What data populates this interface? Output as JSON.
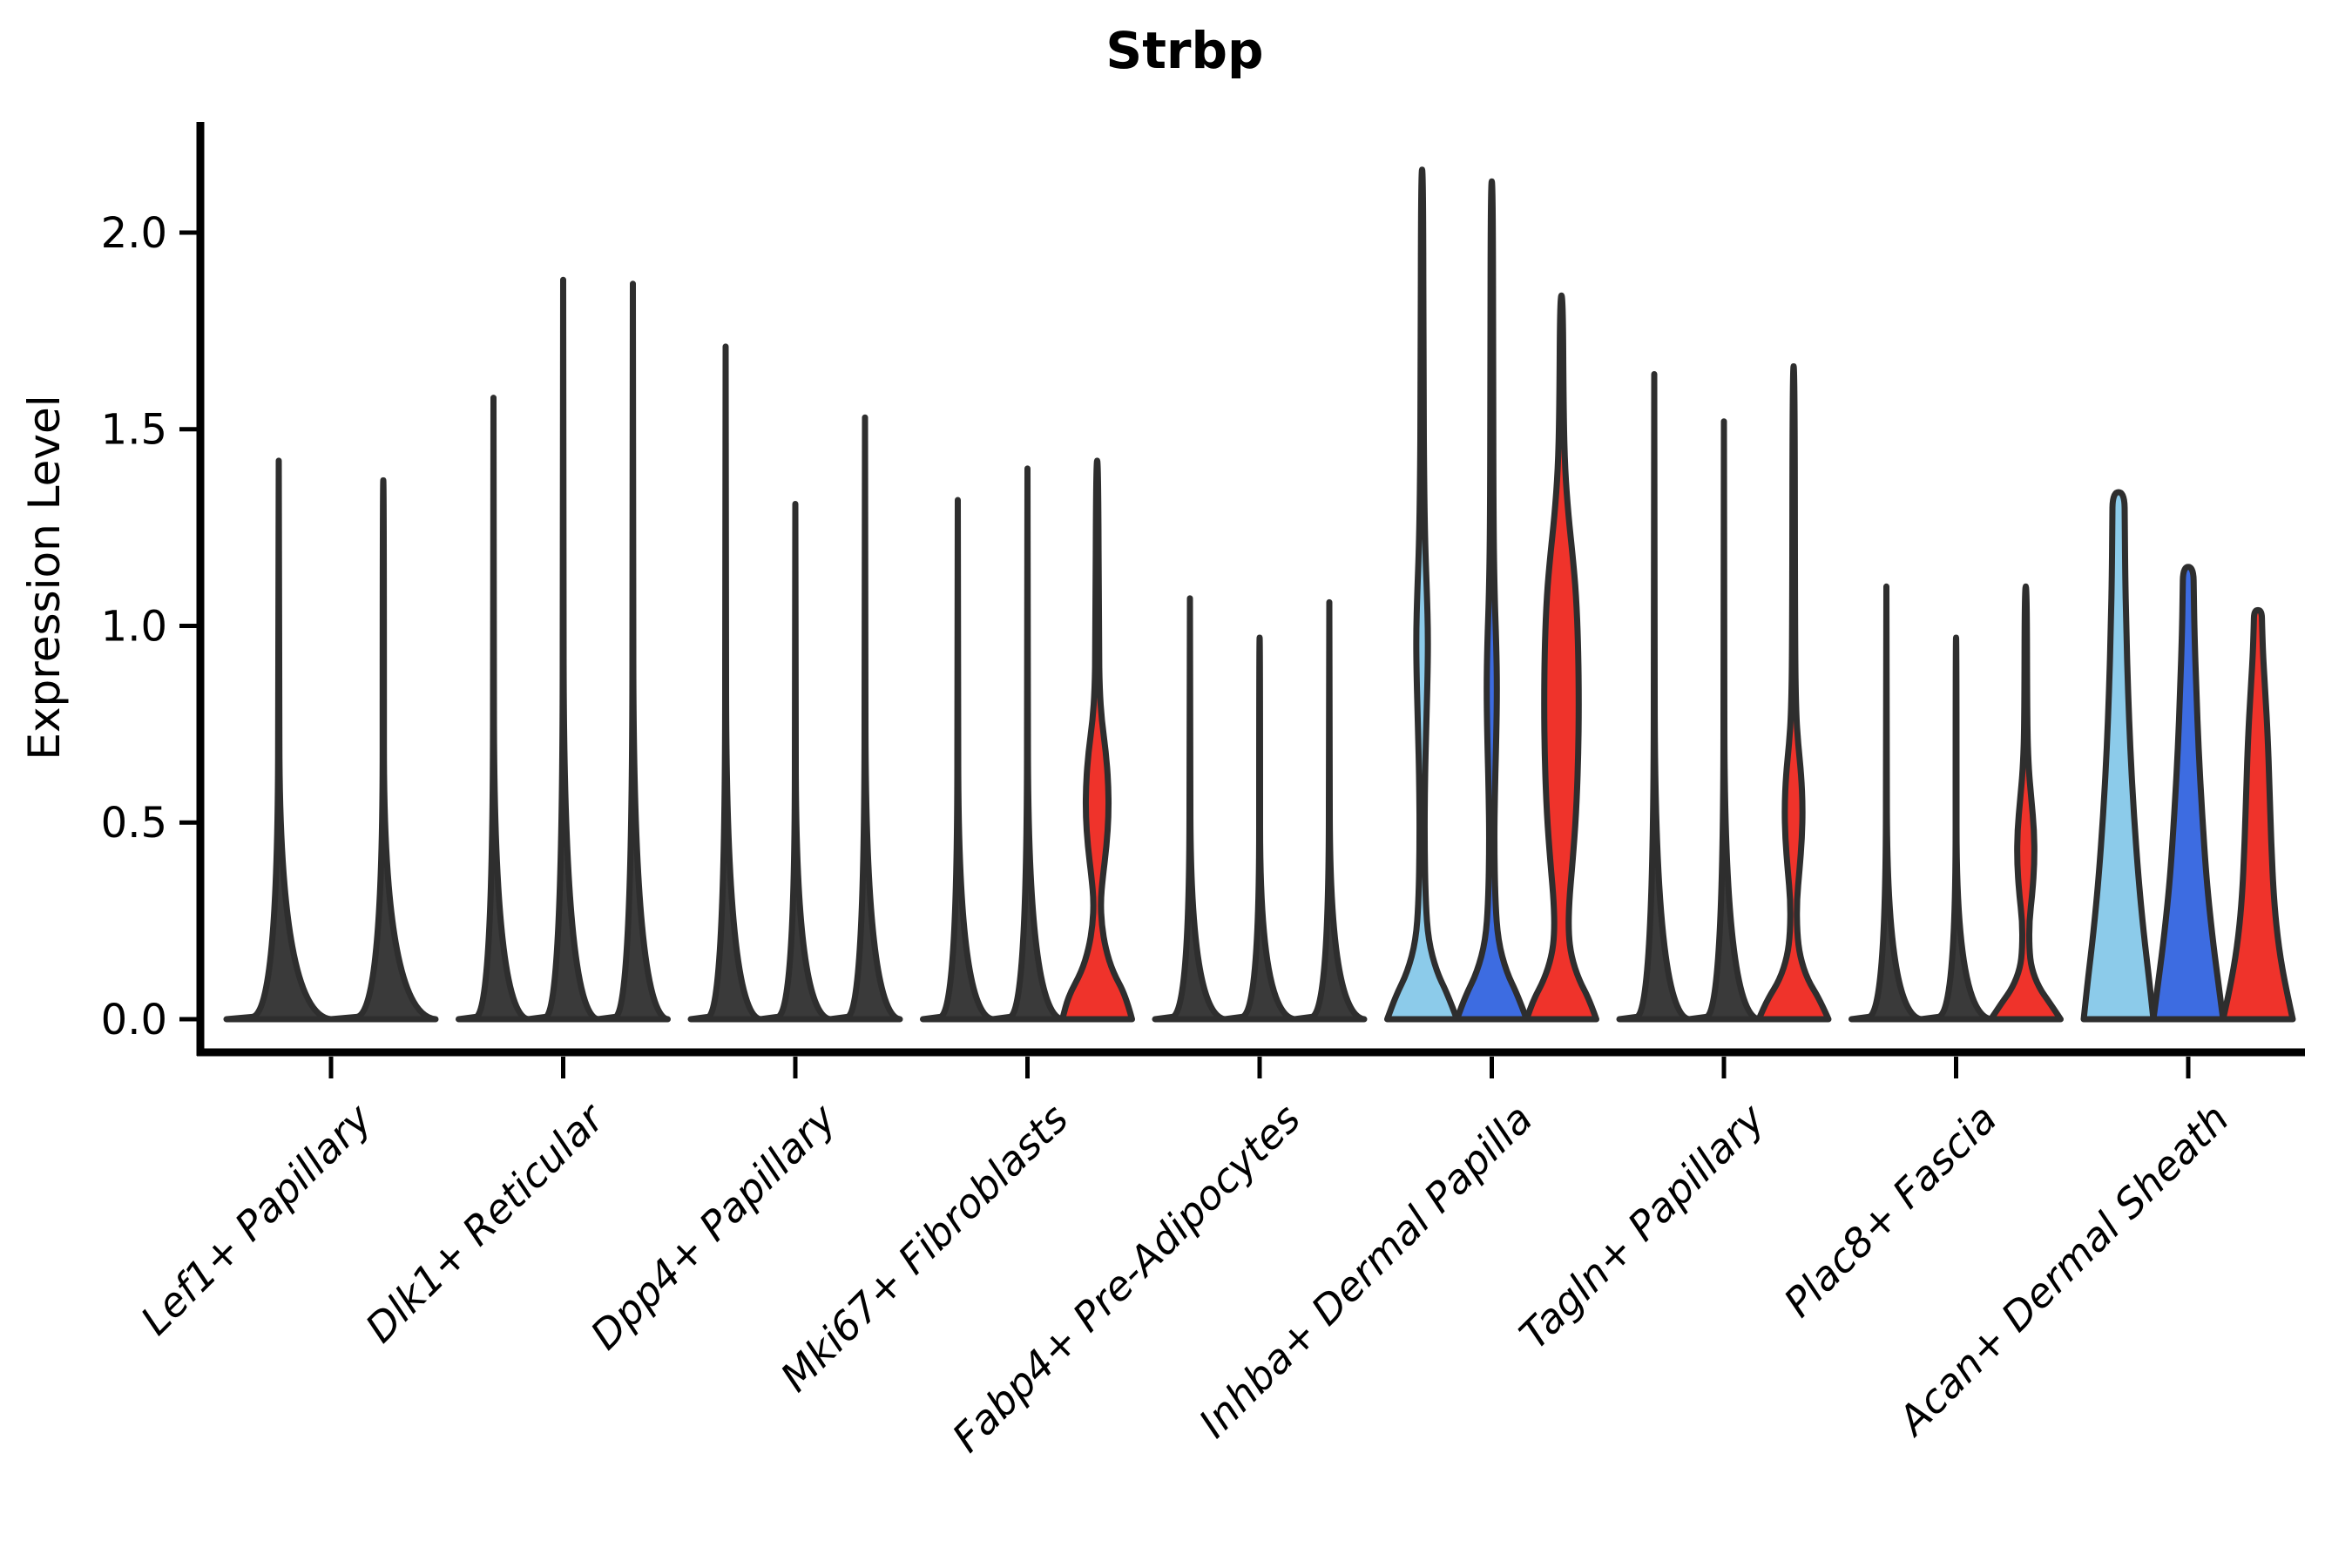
{
  "title": "Strbp",
  "axes": {
    "ylabel": "Expression Level",
    "ytick_labels": [
      "0.0",
      "0.5",
      "1.0",
      "1.5",
      "2.0"
    ]
  },
  "colors": {
    "outline": "#2e2e2e",
    "spike_black": "#3a3a3a",
    "lightblue": "#8ccbea",
    "blue": "#3d6ce1",
    "red": "#ef332b",
    "axis": "#000000"
  },
  "chart_data": {
    "type": "violin",
    "title": "Strbp",
    "xlabel": "",
    "ylabel": "Expression Level",
    "ylim": [
      -0.07,
      2.28
    ],
    "yticks": [
      0.0,
      0.5,
      1.0,
      1.5,
      2.0
    ],
    "grid": false,
    "legend": "none",
    "x_tick_rotation": 45,
    "categories": [
      "Lef1+ Papillary",
      "Dlk1+ Reticular",
      "Dpp4+ Papillary",
      "Mki67+ Fibroblasts",
      "Fabp4+ Pre-Adipocytes",
      "Inhba+ Dermal Papilla",
      "Tagln+ Papillary",
      "Plac8+ Fascia",
      "Acan+ Dermal Sheath"
    ],
    "groups": [
      {
        "category": "Lef1+ Papillary",
        "violins": [
          {
            "color": "black",
            "kind": "spike",
            "max": 1.42
          },
          {
            "color": "black",
            "kind": "spike",
            "max": 1.37
          }
        ]
      },
      {
        "category": "Dlk1+ Reticular",
        "violins": [
          {
            "color": "black",
            "kind": "spike",
            "max": 1.58
          },
          {
            "color": "black",
            "kind": "spike",
            "max": 1.88
          },
          {
            "color": "black",
            "kind": "spike",
            "max": 1.87
          }
        ]
      },
      {
        "category": "Dpp4+ Papillary",
        "violins": [
          {
            "color": "black",
            "kind": "spike",
            "max": 1.71
          },
          {
            "color": "black",
            "kind": "spike",
            "max": 1.31
          },
          {
            "color": "black",
            "kind": "spike",
            "max": 1.53
          }
        ]
      },
      {
        "category": "Mki67+ Fibroblasts",
        "violins": [
          {
            "color": "black",
            "kind": "spike",
            "max": 1.32
          },
          {
            "color": "black",
            "kind": "spike",
            "max": 1.4
          },
          {
            "color": "red",
            "kind": "shaped",
            "max": 1.42,
            "profile": [
              [
                0,
                1.0
              ],
              [
                0.06,
                0.82
              ],
              [
                0.12,
                0.45
              ],
              [
                0.18,
                0.24
              ],
              [
                0.24,
                0.13
              ],
              [
                0.3,
                0.1
              ],
              [
                0.36,
                0.16
              ],
              [
                0.44,
                0.27
              ],
              [
                0.52,
                0.33
              ],
              [
                0.6,
                0.32
              ],
              [
                0.68,
                0.25
              ],
              [
                0.76,
                0.13
              ],
              [
                0.84,
                0.07
              ],
              [
                0.95,
                0.05
              ],
              [
                1.42,
                0.03
              ]
            ]
          }
        ]
      },
      {
        "category": "Fabp4+ Pre-Adipocytes",
        "violins": [
          {
            "color": "black",
            "kind": "spike",
            "max": 1.07
          },
          {
            "color": "black",
            "kind": "spike",
            "max": 0.97
          },
          {
            "color": "black",
            "kind": "spike",
            "max": 1.06
          }
        ]
      },
      {
        "category": "Inhba+ Dermal Papilla",
        "violins": [
          {
            "color": "lightblue",
            "kind": "shaped",
            "max": 2.16,
            "profile": [
              [
                0,
                1.0
              ],
              [
                0.06,
                0.75
              ],
              [
                0.12,
                0.42
              ],
              [
                0.2,
                0.18
              ],
              [
                0.3,
                0.1
              ],
              [
                0.45,
                0.07
              ],
              [
                0.6,
                0.08
              ],
              [
                0.75,
                0.12
              ],
              [
                0.88,
                0.16
              ],
              [
                0.98,
                0.17
              ],
              [
                1.08,
                0.14
              ],
              [
                1.2,
                0.09
              ],
              [
                1.35,
                0.06
              ],
              [
                1.6,
                0.04
              ],
              [
                2.16,
                0.03
              ]
            ]
          },
          {
            "color": "blue",
            "kind": "shaped",
            "max": 2.13,
            "profile": [
              [
                0,
                1.0
              ],
              [
                0.06,
                0.75
              ],
              [
                0.12,
                0.42
              ],
              [
                0.2,
                0.18
              ],
              [
                0.3,
                0.1
              ],
              [
                0.45,
                0.07
              ],
              [
                0.58,
                0.09
              ],
              [
                0.72,
                0.13
              ],
              [
                0.84,
                0.15
              ],
              [
                0.95,
                0.13
              ],
              [
                1.08,
                0.08
              ],
              [
                1.25,
                0.05
              ],
              [
                1.6,
                0.04
              ],
              [
                2.13,
                0.03
              ]
            ]
          },
          {
            "color": "red",
            "kind": "shaped",
            "max": 1.84,
            "profile": [
              [
                0,
                1.0
              ],
              [
                0.05,
                0.8
              ],
              [
                0.1,
                0.5
              ],
              [
                0.16,
                0.28
              ],
              [
                0.22,
                0.2
              ],
              [
                0.3,
                0.22
              ],
              [
                0.4,
                0.32
              ],
              [
                0.52,
                0.42
              ],
              [
                0.66,
                0.48
              ],
              [
                0.8,
                0.5
              ],
              [
                0.95,
                0.48
              ],
              [
                1.08,
                0.42
              ],
              [
                1.18,
                0.32
              ],
              [
                1.28,
                0.2
              ],
              [
                1.4,
                0.1
              ],
              [
                1.55,
                0.06
              ],
              [
                1.84,
                0.04
              ]
            ]
          }
        ]
      },
      {
        "category": "Tagln+ Papillary",
        "violins": [
          {
            "color": "black",
            "kind": "spike",
            "max": 1.64
          },
          {
            "color": "black",
            "kind": "spike",
            "max": 1.52
          },
          {
            "color": "red",
            "kind": "shaped",
            "max": 1.66,
            "profile": [
              [
                0,
                1.0
              ],
              [
                0.05,
                0.75
              ],
              [
                0.1,
                0.4
              ],
              [
                0.16,
                0.18
              ],
              [
                0.22,
                0.1
              ],
              [
                0.3,
                0.09
              ],
              [
                0.38,
                0.17
              ],
              [
                0.46,
                0.24
              ],
              [
                0.54,
                0.26
              ],
              [
                0.62,
                0.22
              ],
              [
                0.7,
                0.13
              ],
              [
                0.78,
                0.07
              ],
              [
                0.95,
                0.04
              ],
              [
                1.66,
                0.03
              ]
            ]
          }
        ]
      },
      {
        "category": "Plac8+ Fascia",
        "violins": [
          {
            "color": "black",
            "kind": "spike",
            "max": 1.1
          },
          {
            "color": "black",
            "kind": "spike",
            "max": 0.97
          },
          {
            "color": "red",
            "kind": "shaped",
            "max": 1.1,
            "profile": [
              [
                0,
                1.0
              ],
              [
                0.04,
                0.7
              ],
              [
                0.08,
                0.38
              ],
              [
                0.13,
                0.16
              ],
              [
                0.18,
                0.1
              ],
              [
                0.25,
                0.1
              ],
              [
                0.32,
                0.19
              ],
              [
                0.4,
                0.25
              ],
              [
                0.48,
                0.24
              ],
              [
                0.56,
                0.16
              ],
              [
                0.64,
                0.08
              ],
              [
                0.75,
                0.04
              ],
              [
                1.1,
                0.03
              ]
            ]
          }
        ]
      },
      {
        "category": "Acan+ Dermal Sheath",
        "violins": [
          {
            "color": "lightblue",
            "kind": "shaped",
            "max": 1.34,
            "profile": [
              [
                0,
                1.0
              ],
              [
                0.1,
                0.88
              ],
              [
                0.22,
                0.72
              ],
              [
                0.36,
                0.57
              ],
              [
                0.52,
                0.44
              ],
              [
                0.68,
                0.34
              ],
              [
                0.84,
                0.27
              ],
              [
                1.0,
                0.22
              ],
              [
                1.14,
                0.19
              ],
              [
                1.26,
                0.18
              ],
              [
                1.34,
                0.17
              ]
            ]
          },
          {
            "color": "blue",
            "kind": "shaped",
            "max": 1.15,
            "profile": [
              [
                0,
                1.0
              ],
              [
                0.1,
                0.85
              ],
              [
                0.22,
                0.68
              ],
              [
                0.36,
                0.52
              ],
              [
                0.52,
                0.4
              ],
              [
                0.68,
                0.3
              ],
              [
                0.84,
                0.23
              ],
              [
                0.98,
                0.18
              ],
              [
                1.08,
                0.16
              ],
              [
                1.15,
                0.15
              ]
            ]
          },
          {
            "color": "red",
            "kind": "shaped",
            "max": 1.04,
            "profile": [
              [
                0,
                1.0
              ],
              [
                0.08,
                0.8
              ],
              [
                0.18,
                0.6
              ],
              [
                0.3,
                0.46
              ],
              [
                0.45,
                0.38
              ],
              [
                0.6,
                0.33
              ],
              [
                0.72,
                0.28
              ],
              [
                0.82,
                0.22
              ],
              [
                0.92,
                0.15
              ],
              [
                1.0,
                0.12
              ],
              [
                1.04,
                0.11
              ]
            ]
          }
        ]
      }
    ]
  }
}
